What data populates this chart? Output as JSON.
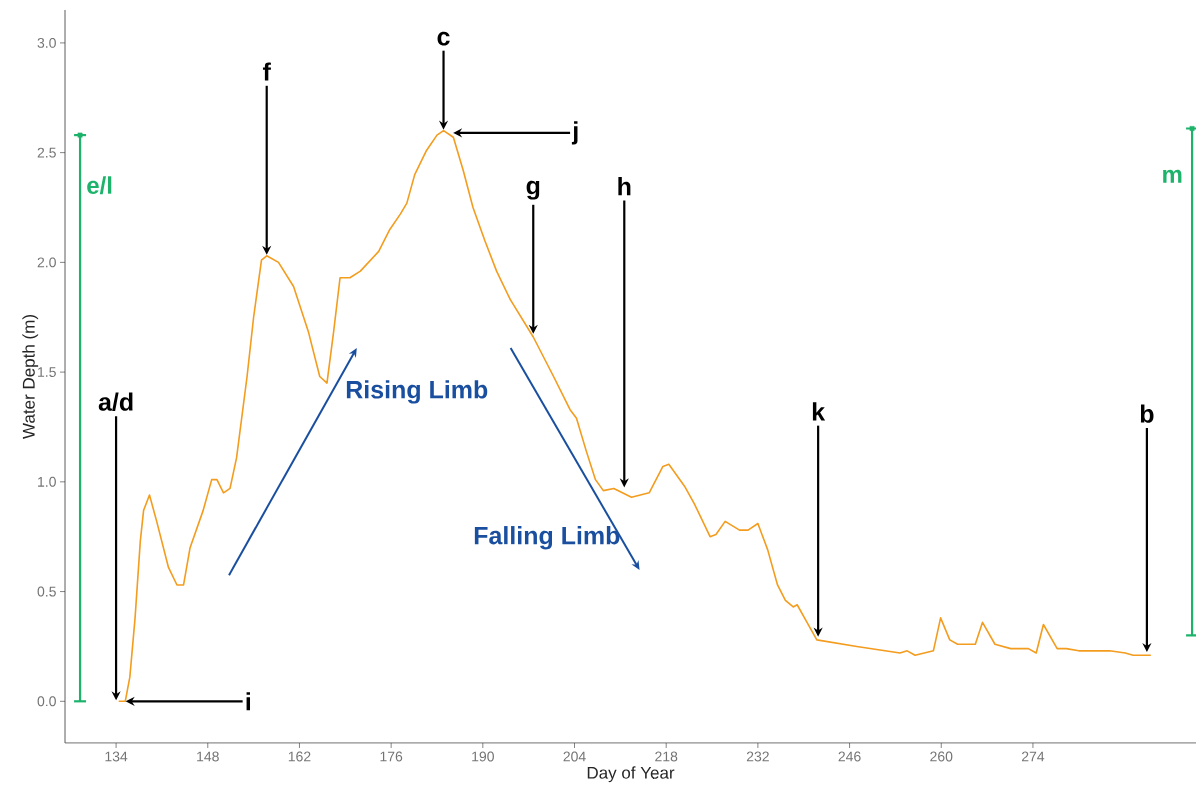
{
  "chart_data": {
    "type": "line",
    "xlabel": "Day of Year",
    "ylabel": "Water Depth (m)",
    "xlim": [
      126.2,
      298.9
    ],
    "ylim": [
      -0.19,
      3.15
    ],
    "xticks": [
      134,
      148,
      162,
      176,
      190,
      204,
      218,
      232,
      246,
      260,
      274
    ],
    "yticks": [
      {
        "value": 0,
        "label": "0.0"
      },
      {
        "value": 0.5,
        "label": "0.5"
      },
      {
        "value": 1,
        "label": "1.0"
      },
      {
        "value": 1.5,
        "label": "1.5"
      },
      {
        "value": 2,
        "label": "2.0"
      },
      {
        "value": 2.5,
        "label": "2.5"
      },
      {
        "value": 3,
        "label": "3.0"
      }
    ],
    "grid": false,
    "marker": "none",
    "series": [
      {
        "color": "#f39c1e",
        "x": [
          134.4,
          135.4,
          136.1,
          136.9,
          137.7,
          138.2,
          139.1,
          140.2,
          142.0,
          143.3,
          144.3,
          145.3,
          147.3,
          148.6,
          149.4,
          150.4,
          151.4,
          152.4,
          154.0,
          155.0,
          156.2,
          157.0,
          158.8,
          161.1,
          163.4,
          165.1,
          166.2,
          167.2,
          168.2,
          169.7,
          171.3,
          174.1,
          175.8,
          177.4,
          178.4,
          179.6,
          181.4,
          183.0,
          184.0,
          185.5,
          187.0,
          188.5,
          190.3,
          192.1,
          194.2,
          197.7,
          200.8,
          203.3,
          204.3,
          205.8,
          207.2,
          208.4,
          210.0,
          212.7,
          215.4,
          217.5,
          218.4,
          220.8,
          222.3,
          224.7,
          225.6,
          227.0,
          229.2,
          230.5,
          232.0,
          233.5,
          235.0,
          236.2,
          237.4,
          238.0,
          239.5,
          241.0,
          247.1,
          253.7,
          254.8,
          256.0,
          258.8,
          259.9,
          261.3,
          262.5,
          265.2,
          266.3,
          268.2,
          270.6,
          273.3,
          274.5,
          275.6,
          277.7,
          279.1,
          281.0,
          285.7,
          288.1,
          289.3,
          292.0
        ],
        "values": [
          0.0,
          0.0,
          0.11,
          0.38,
          0.73,
          0.87,
          0.94,
          0.82,
          0.61,
          0.53,
          0.53,
          0.7,
          0.87,
          1.01,
          1.01,
          0.95,
          0.97,
          1.11,
          1.48,
          1.75,
          2.01,
          2.03,
          2.0,
          1.89,
          1.68,
          1.48,
          1.45,
          1.68,
          1.93,
          1.93,
          1.96,
          2.05,
          2.15,
          2.22,
          2.27,
          2.4,
          2.51,
          2.58,
          2.6,
          2.57,
          2.42,
          2.25,
          2.1,
          1.96,
          1.83,
          1.66,
          1.48,
          1.33,
          1.29,
          1.14,
          1.01,
          0.96,
          0.97,
          0.93,
          0.95,
          1.07,
          1.08,
          0.98,
          0.9,
          0.75,
          0.76,
          0.82,
          0.78,
          0.78,
          0.81,
          0.69,
          0.53,
          0.46,
          0.43,
          0.44,
          0.36,
          0.28,
          0.25,
          0.22,
          0.23,
          0.21,
          0.23,
          0.38,
          0.28,
          0.26,
          0.26,
          0.36,
          0.26,
          0.24,
          0.24,
          0.22,
          0.35,
          0.24,
          0.24,
          0.23,
          0.23,
          0.22,
          0.21,
          0.21
        ]
      },
      {
        "type": "scatter",
        "name": "e/l",
        "color": "#1db36b",
        "marker": "square",
        "x": [
          128.5
        ],
        "values": [
          2.58
        ],
        "errors": [
          [
            0.0,
            2.58
          ]
        ]
      },
      {
        "type": "scatter",
        "name": "m",
        "color": "#1db36b",
        "marker": "square",
        "x": [
          298.3
        ],
        "values": [
          2.61
        ],
        "errors": [
          [
            0.3,
            2.61
          ]
        ]
      }
    ],
    "annotations": [
      {
        "text": "a/d",
        "x": 134,
        "y": 0.0
      },
      {
        "text": "i",
        "x": 135,
        "y": 0.0
      },
      {
        "text": "f",
        "x": 157,
        "y": 2.03
      },
      {
        "text": "c",
        "x": 184,
        "y": 2.6
      },
      {
        "text": "j",
        "x": 185,
        "y": 2.59
      },
      {
        "text": "g",
        "x": 197.7,
        "y": 1.67
      },
      {
        "text": "h",
        "x": 211.6,
        "y": 0.97
      },
      {
        "text": "k",
        "x": 241.2,
        "y": 0.29
      },
      {
        "text": "b",
        "x": 291.4,
        "y": 0.22
      },
      "Rising Limb",
      "Falling Limb"
    ]
  }
}
